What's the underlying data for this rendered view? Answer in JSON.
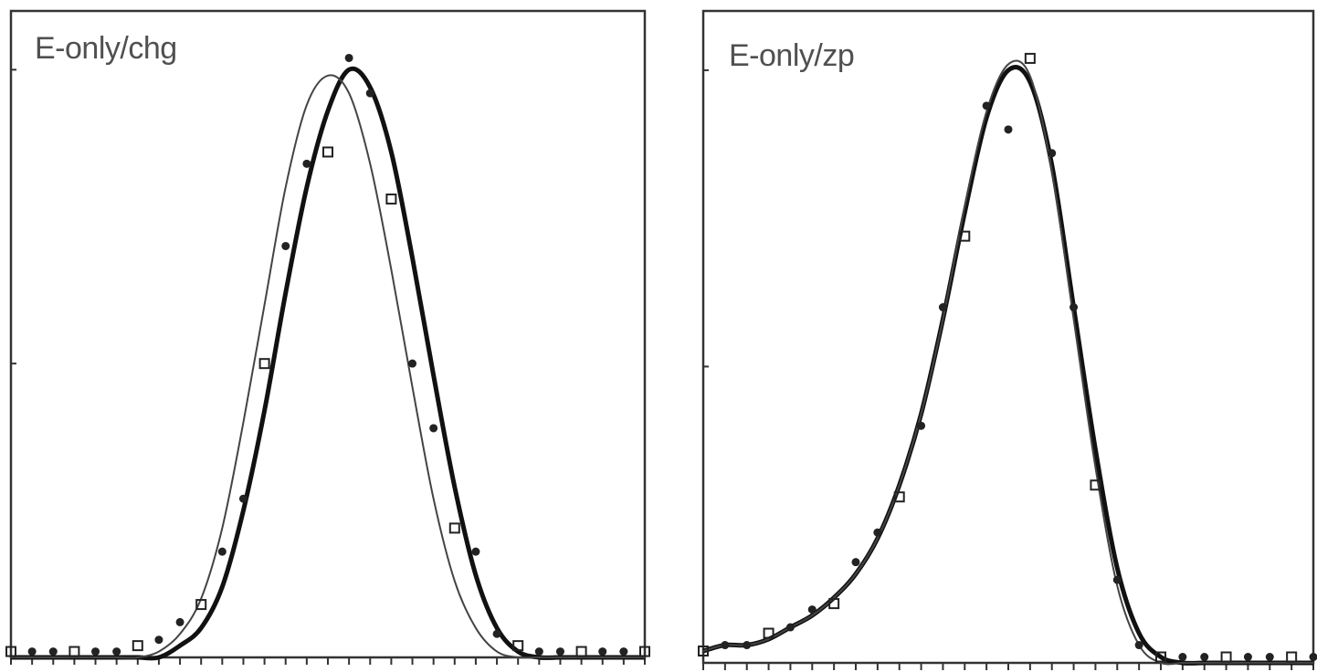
{
  "chart_data": [
    {
      "type": "line",
      "title": "E-only/chg",
      "xlabel": "",
      "ylabel": "",
      "xlim": [
        0,
        30
      ],
      "ylim": [
        0,
        1.1
      ],
      "xticks": 30,
      "yticks": [
        0.5,
        1.0
      ],
      "grid": false,
      "series": [
        {
          "style": "thick",
          "x": [
            0,
            1,
            2,
            3,
            4,
            5,
            6,
            7,
            8,
            9,
            10,
            11,
            12,
            13,
            14,
            15,
            16,
            17,
            18,
            19,
            20,
            21,
            22,
            23,
            24,
            25,
            26,
            27,
            28,
            29,
            30
          ],
          "values": [
            0.0,
            0.0,
            0.0,
            0.0,
            0.0,
            0.0,
            0.0,
            0.0,
            0.02,
            0.05,
            0.12,
            0.25,
            0.42,
            0.62,
            0.8,
            0.93,
            1.0,
            0.97,
            0.86,
            0.68,
            0.48,
            0.29,
            0.14,
            0.05,
            0.01,
            0.0,
            0.0,
            0.0,
            0.0,
            0.0,
            0.0
          ]
        },
        {
          "style": "thin",
          "x": [
            0,
            1,
            2,
            3,
            4,
            5,
            6,
            7,
            8,
            9,
            10,
            11,
            12,
            13,
            14,
            15,
            16,
            17,
            18,
            19,
            20,
            21,
            22,
            23,
            24,
            25,
            26,
            27,
            28,
            29,
            30
          ],
          "values": [
            0.0,
            0.0,
            0.0,
            0.0,
            0.0,
            0.0,
            0.0,
            0.01,
            0.04,
            0.1,
            0.22,
            0.4,
            0.6,
            0.8,
            0.94,
            0.99,
            0.96,
            0.84,
            0.66,
            0.46,
            0.27,
            0.13,
            0.05,
            0.01,
            0.0,
            0.0,
            0.0,
            0.0,
            0.0,
            0.0,
            0.0
          ]
        }
      ],
      "markers": {
        "x": [
          0,
          1,
          2,
          3,
          4,
          5,
          6,
          7,
          8,
          9,
          10,
          11,
          12,
          13,
          14,
          15,
          16,
          17,
          18,
          19,
          20,
          21,
          22,
          23,
          24,
          25,
          26,
          27,
          28,
          29,
          30
        ],
        "values": [
          0.01,
          0.01,
          0.01,
          0.01,
          0.01,
          0.01,
          0.02,
          0.03,
          0.06,
          0.09,
          0.18,
          0.27,
          0.5,
          0.7,
          0.84,
          0.86,
          1.02,
          0.96,
          0.78,
          0.5,
          0.39,
          0.22,
          0.18,
          0.04,
          0.02,
          0.01,
          0.01,
          0.01,
          0.01,
          0.01,
          0.01
        ]
      }
    },
    {
      "type": "line",
      "title": "E-only/zp",
      "xlabel": "",
      "ylabel": "",
      "xlim": [
        0,
        28
      ],
      "ylim": [
        0,
        1.1
      ],
      "xticks": 28,
      "yticks": [
        0.5,
        1.0
      ],
      "grid": false,
      "series": [
        {
          "style": "thick",
          "x": [
            0,
            1,
            2,
            3,
            4,
            5,
            6,
            7,
            8,
            9,
            10,
            11,
            12,
            13,
            14,
            15,
            16,
            17,
            18,
            19,
            20,
            21,
            22,
            23,
            24,
            25,
            26,
            27,
            28
          ],
          "values": [
            0.02,
            0.03,
            0.03,
            0.04,
            0.06,
            0.08,
            0.11,
            0.15,
            0.21,
            0.3,
            0.42,
            0.58,
            0.76,
            0.92,
            1.0,
            0.98,
            0.84,
            0.6,
            0.36,
            0.16,
            0.05,
            0.01,
            0.0,
            0.0,
            0.0,
            0.0,
            0.0,
            0.0,
            0.0
          ]
        },
        {
          "style": "thin",
          "x": [
            0,
            1,
            2,
            3,
            4,
            5,
            6,
            7,
            8,
            9,
            10,
            11,
            12,
            13,
            14,
            15,
            16,
            17,
            18,
            19,
            20,
            21,
            22,
            23,
            24,
            25,
            26,
            27,
            28
          ],
          "values": [
            0.02,
            0.03,
            0.03,
            0.04,
            0.06,
            0.08,
            0.11,
            0.15,
            0.21,
            0.3,
            0.42,
            0.58,
            0.77,
            0.93,
            1.01,
            0.99,
            0.83,
            0.58,
            0.33,
            0.13,
            0.03,
            0.0,
            0.0,
            0.0,
            0.0,
            0.0,
            0.0,
            0.0,
            0.0
          ]
        }
      ],
      "markers": {
        "x": [
          0,
          1,
          2,
          3,
          4,
          5,
          6,
          7,
          8,
          9,
          10,
          11,
          12,
          13,
          14,
          15,
          16,
          17,
          18,
          19,
          20,
          21,
          22,
          23,
          24,
          25,
          26,
          27,
          28
        ],
        "values": [
          0.02,
          0.03,
          0.03,
          0.05,
          0.06,
          0.09,
          0.1,
          0.17,
          0.22,
          0.28,
          0.4,
          0.6,
          0.72,
          0.94,
          0.9,
          1.02,
          0.86,
          0.6,
          0.3,
          0.14,
          0.03,
          0.01,
          0.01,
          0.01,
          0.01,
          0.01,
          0.01,
          0.01,
          0.01
        ]
      }
    }
  ]
}
